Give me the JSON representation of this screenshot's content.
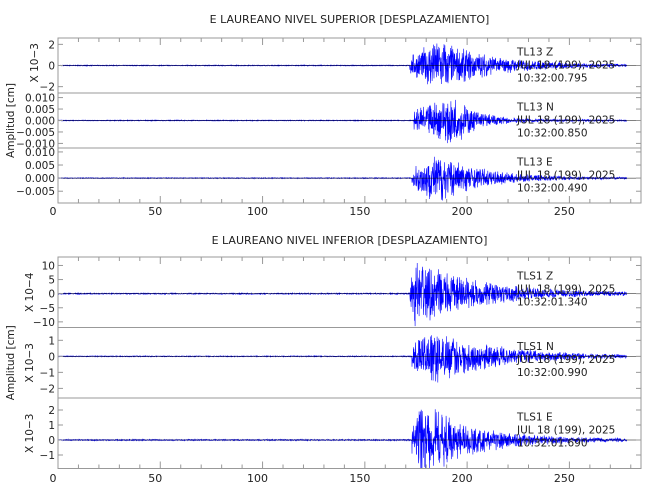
{
  "chart_data": [
    {
      "type": "line",
      "title": "E LAUREANO NIVEL SUPERIOR [DESPLAZAMIENTO]",
      "ylabel": "Amplitud [cm]",
      "xlim": [
        0,
        285
      ],
      "xticks": [
        "0",
        "50",
        "100",
        "150",
        "200",
        "250"
      ],
      "grid": false,
      "line_color": "#0000ff",
      "traces": [
        {
          "label": "TL13   Z",
          "date": "JUL 18 (199), 2025",
          "time": "10:32:00.795",
          "scale_label": "X 10−3",
          "ylim": [
            -2.6,
            2.6
          ],
          "yticks": [
            "2",
            "0",
            "−2"
          ],
          "ytick_values": [
            2,
            0,
            -2
          ],
          "onset": 172,
          "peak": 2.6,
          "peak_time": 186,
          "decay": 25
        },
        {
          "label": "TL13   N",
          "date": "JUL 18 (199), 2025",
          "time": "10:32:00.850",
          "scale_label": "",
          "ylim": [
            -0.012,
            0.012
          ],
          "yticks": [
            "0.010",
            "0.005",
            "0.000",
            "−0.005",
            "−0.010"
          ],
          "ytick_values": [
            0.01,
            0.005,
            0,
            -0.005,
            -0.01
          ],
          "onset": 174,
          "peak": 0.0115,
          "peak_time": 193,
          "decay": 12
        },
        {
          "label": "TL13   E",
          "date": "JUL 18 (199), 2025",
          "time": "10:32:00.490",
          "scale_label": "",
          "ylim": [
            -0.0095,
            0.0115
          ],
          "yticks": [
            "0.010",
            "0.005",
            "0.000",
            "−0.005"
          ],
          "ytick_values": [
            0.01,
            0.005,
            0,
            -0.005
          ],
          "onset": 173,
          "peak": 0.0105,
          "peak_time": 186,
          "decay": 20
        }
      ]
    },
    {
      "type": "line",
      "title": "E LAUREANO NIVEL INFERIOR [DESPLAZAMIENTO]",
      "ylabel": "Amplitud [cm]",
      "xlim": [
        0,
        285
      ],
      "xticks": [
        "0",
        "50",
        "100",
        "150",
        "200",
        "250"
      ],
      "grid": false,
      "line_color": "#0000ff",
      "traces": [
        {
          "label": "TLS1   Z",
          "date": "JUL 18 (199), 2025",
          "time": "10:32:01.340",
          "scale_label": "X 10−4",
          "ylim": [
            -12,
            13
          ],
          "yticks": [
            "10",
            "5",
            "0",
            "−5",
            "−10"
          ],
          "ytick_values": [
            10,
            5,
            0,
            -5,
            -10
          ],
          "onset": 172,
          "peak": 12.5,
          "peak_time": 175,
          "decay": 30
        },
        {
          "label": "TLS1   N",
          "date": "JUL 18 (199), 2025",
          "time": "10:32:00.990",
          "scale_label": "X 10−3",
          "ylim": [
            -2.6,
            1.8
          ],
          "yticks": [
            "1",
            "0",
            "−1",
            "−2"
          ],
          "ytick_values": [
            1,
            0,
            -1,
            -2
          ],
          "onset": 173,
          "peak": 1.8,
          "peak_time": 183,
          "decay": 30
        },
        {
          "label": "TLS1   E",
          "date": "JUL 18 (199), 2025",
          "time": "10:32:01.690",
          "scale_label": "X 10−3",
          "ylim": [
            -1.9,
            2.8
          ],
          "yticks": [
            "2",
            "1",
            "0",
            "−1"
          ],
          "ytick_values": [
            2,
            1,
            0,
            -1
          ],
          "onset": 173,
          "peak": 2.6,
          "peak_time": 178,
          "decay": 25
        }
      ]
    }
  ]
}
